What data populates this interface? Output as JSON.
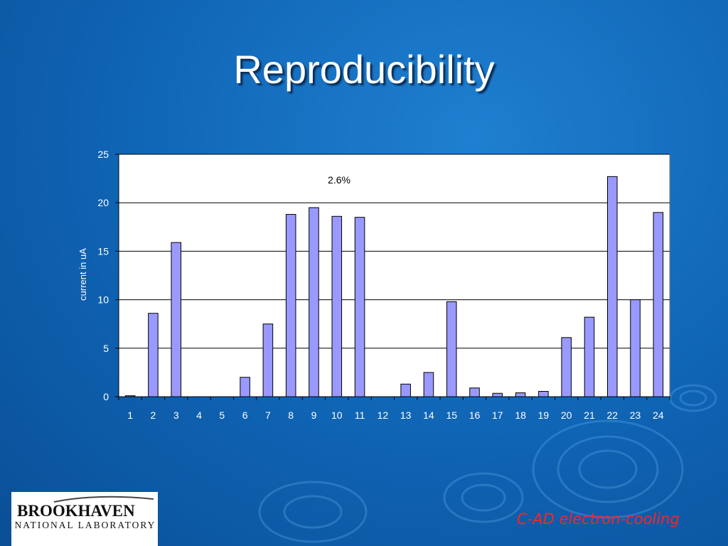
{
  "slide": {
    "title": "Reproducibility",
    "footer": "C-AD electron-cooling",
    "logo": {
      "word": "BROOKHAVEN",
      "sub": "NATIONAL LABORATORY"
    }
  },
  "colors": {
    "bar_fill": "#9999ff",
    "bar_stroke": "#000000",
    "plot_bg": "#ffffff",
    "text": "#ffffff",
    "footer": "#ff2222"
  },
  "chart_data": {
    "type": "bar",
    "title": "",
    "xlabel": "",
    "ylabel": "current in uA",
    "ylim": [
      0,
      25
    ],
    "yticks": [
      0,
      5,
      10,
      15,
      20,
      25
    ],
    "grid": "horizontal",
    "annotation": "2.6%",
    "categories": [
      "1",
      "2",
      "3",
      "4",
      "5",
      "6",
      "7",
      "8",
      "9",
      "10",
      "11",
      "12",
      "13",
      "14",
      "15",
      "16",
      "17",
      "18",
      "19",
      "20",
      "21",
      "22",
      "23",
      "24"
    ],
    "values": [
      0.1,
      8.6,
      15.9,
      0,
      0,
      2.0,
      7.5,
      18.8,
      19.5,
      18.6,
      18.5,
      0,
      1.3,
      2.5,
      9.8,
      0.9,
      0.35,
      0.4,
      0.55,
      6.1,
      8.2,
      22.7,
      10.0,
      19.0
    ]
  }
}
